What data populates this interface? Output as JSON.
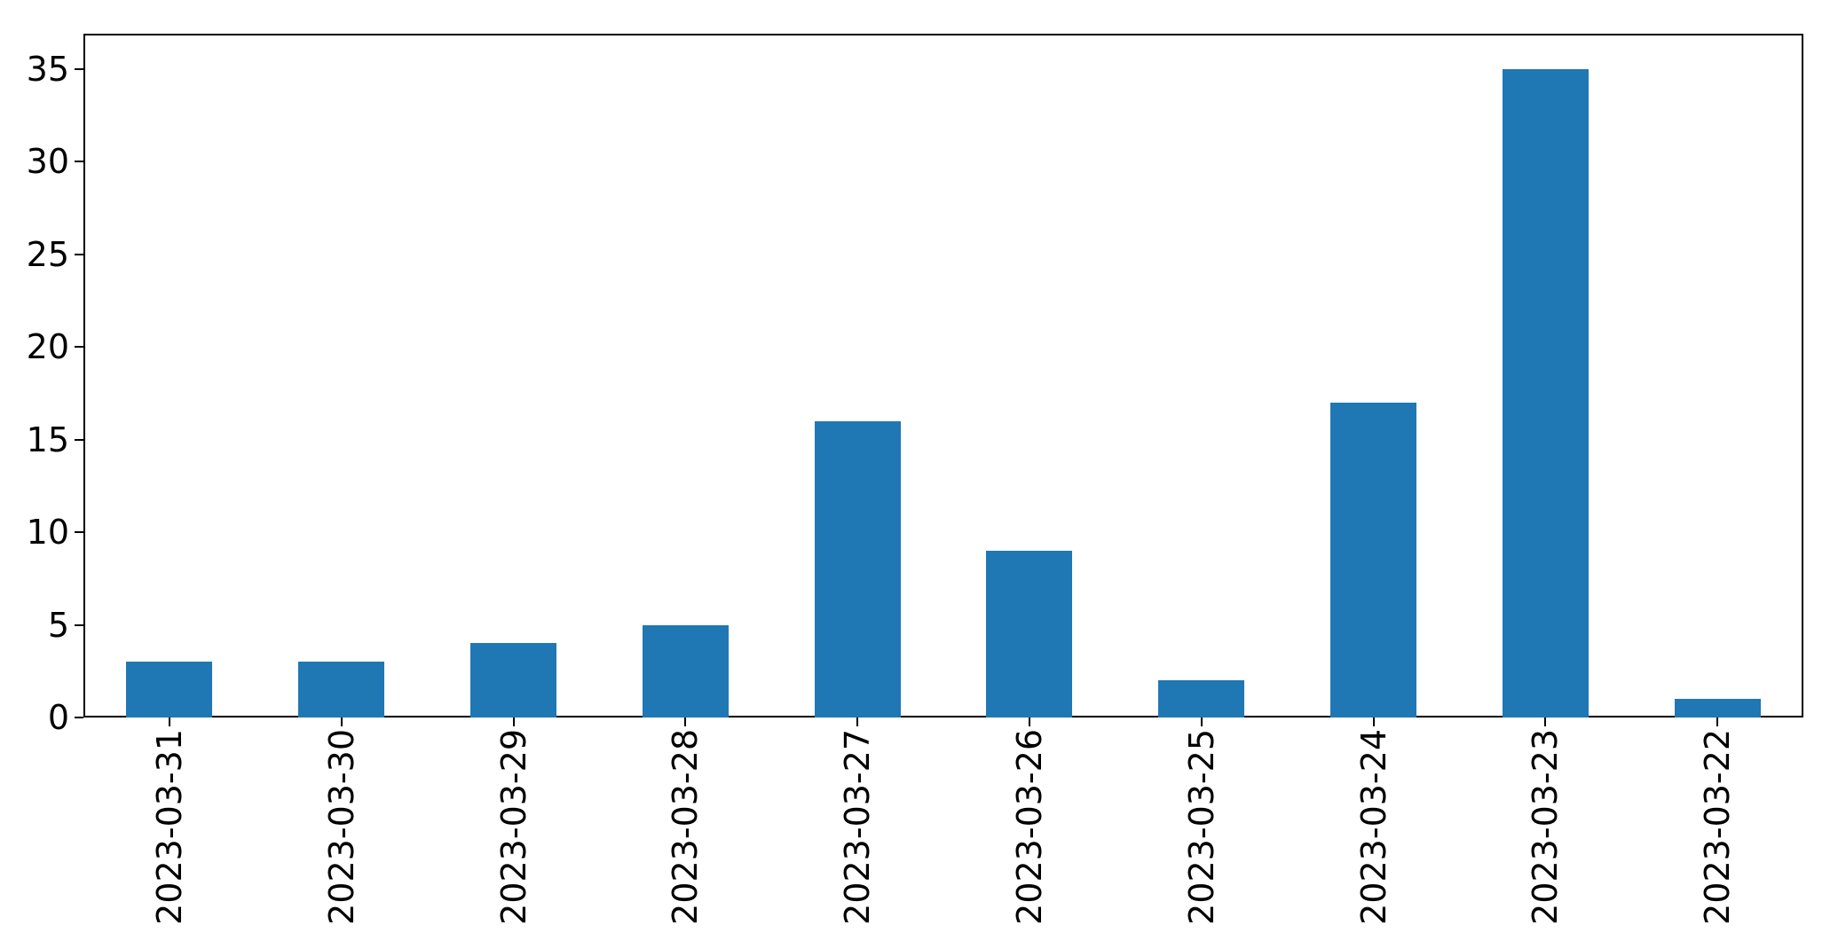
{
  "colors": {
    "bar": "#1f77b4",
    "axis": "#000000",
    "tick_label": "#000000",
    "background": "#ffffff"
  },
  "chart_data": {
    "type": "bar",
    "categories": [
      "2023-03-31",
      "2023-03-30",
      "2023-03-29",
      "2023-03-28",
      "2023-03-27",
      "2023-03-26",
      "2023-03-25",
      "2023-03-24",
      "2023-03-23",
      "2023-03-22"
    ],
    "values": [
      3,
      3,
      4,
      5,
      16,
      9,
      2,
      17,
      35,
      1
    ],
    "title": "",
    "xlabel": "",
    "ylabel": "",
    "ylim": [
      0,
      36.9
    ],
    "yticks": [
      0,
      5,
      10,
      15,
      20,
      25,
      30,
      35
    ],
    "bar_width_fraction": 0.5,
    "grid": false,
    "legend_position": "none",
    "x_tick_label_rotation_deg": 90
  }
}
